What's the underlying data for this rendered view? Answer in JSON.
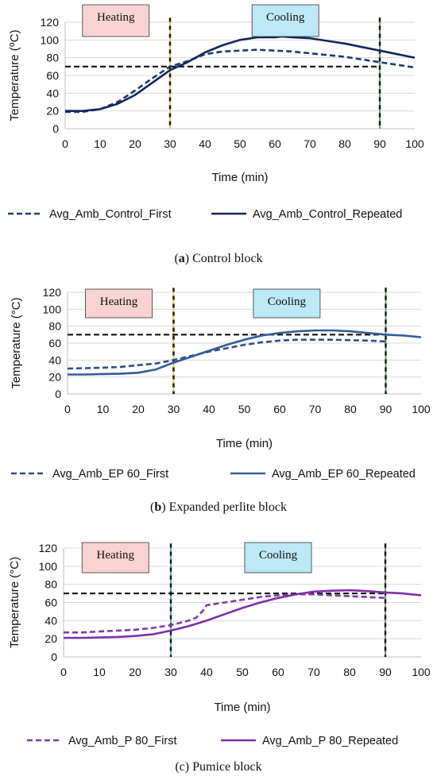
{
  "chart_data": [
    {
      "type": "line",
      "xlabel": "Time (min)",
      "ylabel": "Temperature (⁰C)",
      "xlim": [
        0,
        100
      ],
      "ylim": [
        0,
        120
      ],
      "x_ticks": [
        0,
        10,
        20,
        30,
        40,
        50,
        60,
        70,
        80,
        90,
        100
      ],
      "y_ticks": [
        0,
        20,
        40,
        60,
        80,
        100,
        120
      ],
      "grid": "horizontal",
      "legend_placement": "bottom",
      "reference_line_y": 70,
      "phase_lines_x": [
        30,
        90
      ],
      "phase_line_colors": [
        "#e8b400",
        "#3a7d3a"
      ],
      "phase_labels": [
        {
          "text": "Heating",
          "x": 14.5,
          "fill": "#f9d3d3"
        },
        {
          "text": "Cooling",
          "x": 63,
          "fill": "#bde9f7"
        }
      ],
      "caption": {
        "letter": "a",
        "prefix": "(",
        "suffix": ")",
        "text": " Control block"
      },
      "series": [
        {
          "name": "Avg_Amb_Control_First",
          "style": "dashed",
          "color": "#1f3a6e",
          "x": [
            0,
            5,
            10,
            15,
            20,
            25,
            30,
            35,
            40,
            45,
            50,
            55,
            60,
            65,
            70,
            75,
            80,
            85,
            90,
            95,
            100
          ],
          "y": [
            19,
            19,
            22,
            30,
            43,
            57,
            70,
            76,
            84,
            87,
            88,
            89,
            88,
            87,
            85,
            83,
            81,
            78,
            75,
            72,
            69
          ]
        },
        {
          "name": "Avg_Amb_Control_Repeated",
          "style": "solid",
          "color": "#14265c",
          "x": [
            0,
            5,
            10,
            15,
            20,
            25,
            30,
            35,
            40,
            45,
            50,
            55,
            60,
            62,
            65,
            70,
            75,
            80,
            85,
            90,
            95,
            100
          ],
          "y": [
            20,
            20,
            22,
            28,
            38,
            52,
            66,
            75,
            86,
            94,
            100,
            103,
            103,
            104,
            103,
            102,
            99,
            96,
            92,
            88,
            84,
            80
          ]
        }
      ]
    },
    {
      "type": "line",
      "xlabel": "Time (min)",
      "ylabel": "Temperature (°C)",
      "xlim": [
        0,
        100
      ],
      "ylim": [
        0,
        120
      ],
      "x_ticks": [
        0,
        10,
        20,
        30,
        40,
        50,
        60,
        70,
        80,
        90,
        100
      ],
      "y_ticks": [
        0,
        20,
        40,
        60,
        80,
        100,
        120
      ],
      "grid": "horizontal",
      "legend_placement": "bottom",
      "reference_line_y": 70,
      "phase_lines_x": [
        30,
        90
      ],
      "phase_line_colors": [
        "#e8b400",
        "#3a7d3a"
      ],
      "phase_labels": [
        {
          "text": "Heating",
          "x": 14.5,
          "fill": "#f9d3d3"
        },
        {
          "text": "Cooling",
          "x": 62,
          "fill": "#bde9f7"
        }
      ],
      "caption": {
        "letter": "b",
        "prefix": "(",
        "suffix": ")",
        "text": " Expanded perlite block"
      },
      "series": [
        {
          "name": "Avg_Amb_EP 60_First",
          "style": "dashed",
          "color": "#2e4f8a",
          "x": [
            0,
            5,
            10,
            15,
            20,
            25,
            30,
            35,
            40,
            45,
            50,
            55,
            60,
            65,
            70,
            75,
            80,
            85,
            90
          ],
          "y": [
            30,
            30.5,
            31,
            32,
            34,
            36,
            40,
            45,
            50,
            54,
            58,
            61,
            63,
            64,
            64,
            64,
            63.5,
            63,
            62
          ]
        },
        {
          "name": "Avg_Amb_EP 60_Repeated",
          "style": "solid",
          "color": "#365a98",
          "x": [
            0,
            5,
            10,
            15,
            20,
            25,
            30,
            35,
            40,
            45,
            50,
            55,
            60,
            65,
            70,
            75,
            80,
            85,
            90,
            95,
            100
          ],
          "y": [
            23,
            23,
            23.5,
            24,
            25,
            29,
            37,
            44,
            51,
            58,
            64,
            69,
            72,
            74,
            75,
            75,
            74,
            72,
            70,
            69,
            67
          ]
        }
      ]
    },
    {
      "type": "line",
      "xlabel": "Time (min)",
      "ylabel": "Temperature (°C)",
      "xlim": [
        0,
        100
      ],
      "ylim": [
        0,
        120
      ],
      "x_ticks": [
        0,
        10,
        20,
        30,
        40,
        50,
        60,
        70,
        80,
        90,
        100
      ],
      "y_ticks": [
        0,
        20,
        40,
        60,
        80,
        100,
        120
      ],
      "grid": "horizontal",
      "legend_placement": "bottom",
      "reference_line_y": 70,
      "phase_lines_x": [
        30,
        90
      ],
      "phase_line_colors": [
        "#2e7fa8",
        "#555555"
      ],
      "phase_labels": [
        {
          "text": "Heating",
          "x": 14.5,
          "fill": "#f9d3d3"
        },
        {
          "text": "Cooling",
          "x": 60,
          "fill": "#bde9f7"
        }
      ],
      "caption": {
        "letter": "",
        "prefix": "",
        "suffix": "",
        "text": "(c) Pumice block"
      },
      "series": [
        {
          "name": "Avg_Amb_P 80_First",
          "style": "dashed",
          "color": "#7a3aa8",
          "x": [
            0,
            5,
            10,
            15,
            20,
            25,
            30,
            35,
            37,
            39,
            40,
            45,
            50,
            55,
            60,
            65,
            70,
            75,
            80,
            85,
            90
          ],
          "y": [
            27,
            27,
            28,
            29,
            30,
            32,
            35,
            40,
            43,
            51,
            57,
            60,
            63,
            66,
            68,
            69,
            69,
            68,
            67,
            66,
            65
          ]
        },
        {
          "name": "Avg_Amb_P 80_Repeated",
          "style": "solid",
          "color": "#7a30a8",
          "x": [
            0,
            5,
            10,
            15,
            20,
            25,
            30,
            35,
            40,
            45,
            50,
            55,
            60,
            65,
            70,
            75,
            80,
            85,
            90,
            95,
            100
          ],
          "y": [
            21,
            21,
            21.5,
            22,
            23,
            25,
            29,
            34,
            40,
            47,
            54,
            60,
            65,
            69,
            72,
            73,
            73.5,
            72.5,
            71,
            70,
            68
          ]
        }
      ]
    }
  ]
}
